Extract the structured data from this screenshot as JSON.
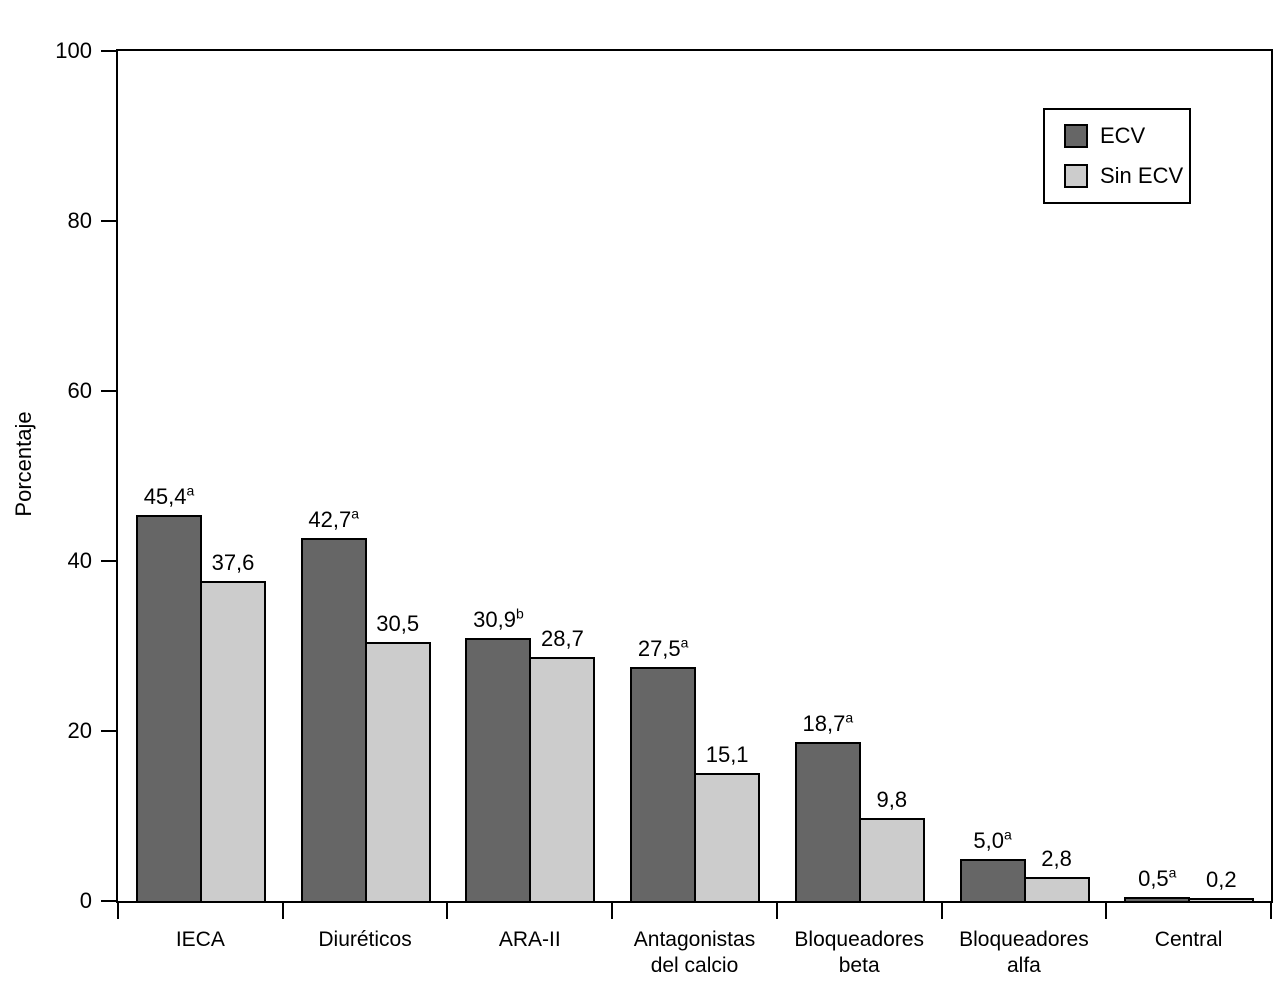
{
  "chart_data": {
    "type": "bar",
    "title": "",
    "xlabel": "",
    "ylabel": "Porcentaje",
    "ylim": [
      0,
      100
    ],
    "yticks": [
      0,
      20,
      40,
      60,
      80,
      100
    ],
    "grid": false,
    "legend_position": "top-right",
    "axis_color": "#000000",
    "categories": [
      "IECA",
      "Diuréticos",
      "ARA-II",
      "Antagonistas del calcio",
      "Bloqueadores beta",
      "Bloqueadores alfa",
      "Central"
    ],
    "category_label_lines": [
      [
        "IECA"
      ],
      [
        "Diuréticos"
      ],
      [
        "ARA-II"
      ],
      [
        "Antagonistas",
        "del calcio"
      ],
      [
        "Bloqueadores",
        "beta"
      ],
      [
        "Bloqueadores",
        "alfa"
      ],
      [
        "Central"
      ]
    ],
    "series": [
      {
        "name": "ECV",
        "color": "#666666",
        "values": [
          45.4,
          42.7,
          30.9,
          27.5,
          18.7,
          5.0,
          0.5
        ],
        "labels": [
          "45,4",
          "42,7",
          "30,9",
          "27,5",
          "18,7",
          "5,0",
          "0,5"
        ],
        "label_superscripts": [
          "a",
          "a",
          "b",
          "a",
          "a",
          "a",
          "a"
        ]
      },
      {
        "name": "Sin ECV",
        "color": "#cccccc",
        "values": [
          37.6,
          30.5,
          28.7,
          15.1,
          9.8,
          2.8,
          0.2
        ],
        "labels": [
          "37,6",
          "30,5",
          "28,7",
          "15,1",
          "9,8",
          "2,8",
          "0,2"
        ],
        "label_superscripts": [
          "",
          "",
          "",
          "",
          "",
          "",
          ""
        ]
      }
    ]
  }
}
